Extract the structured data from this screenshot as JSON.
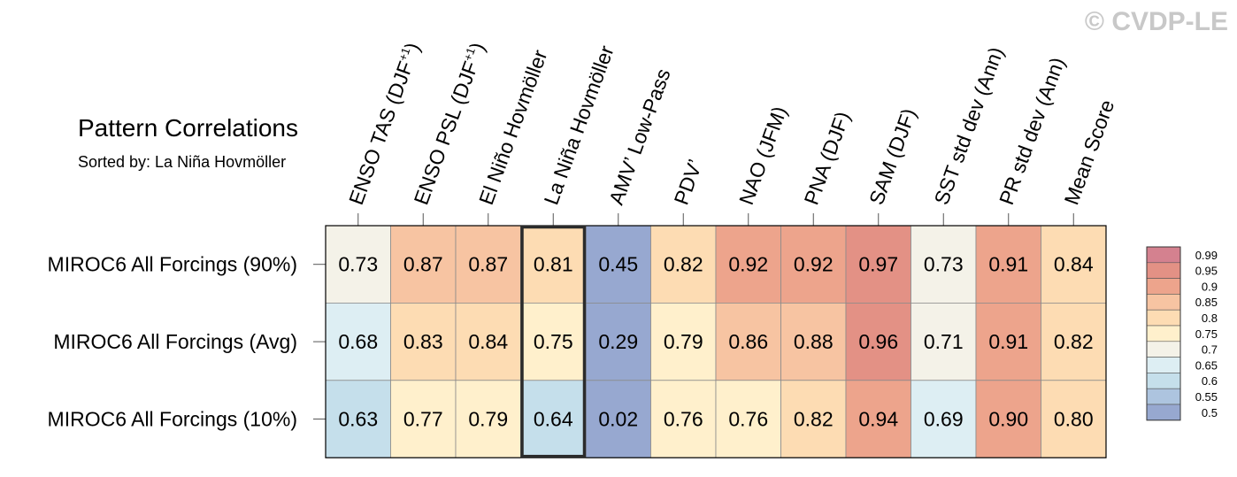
{
  "watermark": "© CVDP-LE",
  "title": "Pattern Correlations",
  "subtitle": "Sorted by: La Niña Hovmöller",
  "chart_data": {
    "type": "heatmap",
    "columns": [
      "ENSO TAS (DJF+1)",
      "ENSO PSL (DJF+1)",
      "El Niño Hovmöller",
      "La Niña Hovmöller",
      "AMV' Low-Pass",
      "PDV'",
      "NAO (JFM)",
      "PNA (DJF)",
      "SAM (DJF)",
      "SST std dev (Ann)",
      "PR std dev (Ann)",
      "Mean Score"
    ],
    "column_labels": [
      {
        "base": "ENSO TAS (DJF",
        "sup": "+1",
        "end": ")"
      },
      {
        "base": "ENSO PSL (DJF",
        "sup": "+1",
        "end": ")"
      },
      {
        "base": "El Niño Hovmöller",
        "sup": "",
        "end": ""
      },
      {
        "base": "La Niña Hovmöller",
        "sup": "",
        "end": ""
      },
      {
        "base": "AMV’ Low-Pass",
        "sup": "",
        "end": ""
      },
      {
        "base": "PDV’",
        "sup": "",
        "end": ""
      },
      {
        "base": "NAO (JFM)",
        "sup": "",
        "end": ""
      },
      {
        "base": "PNA (DJF)",
        "sup": "",
        "end": ""
      },
      {
        "base": "SAM (DJF)",
        "sup": "",
        "end": ""
      },
      {
        "base": "SST std dev (Ann)",
        "sup": "",
        "end": ""
      },
      {
        "base": "PR std dev (Ann)",
        "sup": "",
        "end": ""
      },
      {
        "base": "Mean Score",
        "sup": "",
        "end": ""
      }
    ],
    "rows": [
      "MIROC6 All Forcings (90%)",
      "MIROC6 All Forcings (Avg)",
      "MIROC6 All Forcings (10%)"
    ],
    "values": [
      [
        0.73,
        0.87,
        0.87,
        0.81,
        0.45,
        0.82,
        0.92,
        0.92,
        0.97,
        0.73,
        0.91,
        0.84
      ],
      [
        0.68,
        0.83,
        0.84,
        0.75,
        0.29,
        0.79,
        0.86,
        0.88,
        0.96,
        0.71,
        0.91,
        0.82
      ],
      [
        0.63,
        0.77,
        0.79,
        0.64,
        0.02,
        0.76,
        0.76,
        0.82,
        0.94,
        0.69,
        0.9,
        0.8
      ]
    ],
    "highlighted_column": "La Niña Hovmöller",
    "colorbar": {
      "levels": [
        "0.99",
        "0.95",
        "0.9",
        "0.85",
        "0.8",
        "0.75",
        "0.7",
        "0.65",
        "0.6",
        "0.55",
        "0.5"
      ],
      "colors": [
        "#d4818f",
        "#e39185",
        "#eda48c",
        "#f7c4a2",
        "#fddcb3",
        "#fff0cc",
        "#f4f2e8",
        "#ddeef3",
        "#c5dfeb",
        "#adc4df",
        "#97a8d0"
      ]
    }
  }
}
